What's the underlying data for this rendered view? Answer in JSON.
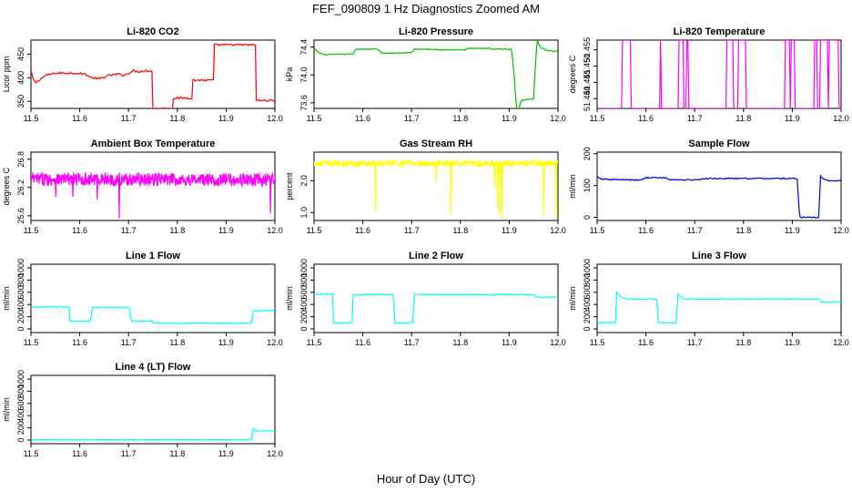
{
  "figure": {
    "title": "FEF_090809  1 Hz Diagnostics Zoomed AM",
    "xlabel": "Hour of Day (UTC)"
  },
  "chart_data": [
    {
      "type": "line",
      "title": "Li-820 CO2",
      "ylabel": "Licor ppm",
      "color": "#ff0000",
      "xlim": [
        11.5,
        12.0
      ],
      "ylim": [
        335,
        480
      ],
      "xticks": [
        "11.5",
        "11.6",
        "11.7",
        "11.8",
        "11.9",
        "12.0"
      ],
      "yticks": [
        {
          "v": 350,
          "label": "350"
        },
        {
          "v": 400,
          "label": "400"
        },
        {
          "v": 450,
          "label": "450"
        }
      ],
      "noise": 2,
      "step": 0.002,
      "x": [
        11.5,
        11.505,
        11.51,
        11.53,
        11.55,
        11.59,
        11.61,
        11.625,
        11.64,
        11.66,
        11.68,
        11.69,
        11.71,
        11.72,
        11.735,
        11.749,
        11.75,
        11.79,
        11.791,
        11.83,
        11.831,
        11.874,
        11.875,
        11.96,
        11.961,
        11.97,
        12.0
      ],
      "y": [
        415,
        395,
        390,
        405,
        410,
        410,
        408,
        400,
        398,
        405,
        408,
        405,
        415,
        413,
        415,
        414,
        335,
        335,
        357,
        357,
        395,
        395,
        470,
        470,
        352,
        352,
        352
      ]
    },
    {
      "type": "line",
      "title": "Li-820 Pressure",
      "ylabel": "kPa",
      "color": "#00c000",
      "xlim": [
        11.5,
        12.0
      ],
      "ylim": [
        73.52,
        74.5
      ],
      "xticks": [
        "11.5",
        "11.6",
        "11.7",
        "11.8",
        "11.9",
        "12.0"
      ],
      "yticks": [
        {
          "v": 73.6,
          "label": "73.6"
        },
        {
          "v": 74.0,
          "label": "74.0"
        },
        {
          "v": 74.4,
          "label": "74.4"
        }
      ],
      "noise": 0.006,
      "step": 0.002,
      "x": [
        11.5,
        11.51,
        11.52,
        11.58,
        11.585,
        11.63,
        11.64,
        11.7,
        11.705,
        11.75,
        11.755,
        11.81,
        11.815,
        11.86,
        11.865,
        11.905,
        11.91,
        11.915,
        11.92,
        11.925,
        11.95,
        11.955,
        11.958,
        11.963,
        11.975,
        11.99,
        12.0
      ],
      "y": [
        74.38,
        74.32,
        74.29,
        74.3,
        74.37,
        74.37,
        74.31,
        74.32,
        74.37,
        74.37,
        74.36,
        74.36,
        74.38,
        74.38,
        74.37,
        74.37,
        74.0,
        73.52,
        73.52,
        73.64,
        73.66,
        74.3,
        74.5,
        74.4,
        74.36,
        74.34,
        74.34
      ]
    },
    {
      "type": "line",
      "title": "Li-820 Temperature",
      "ylabel": "degrees C",
      "color": "#ff00ff",
      "xlim": [
        11.5,
        12.0
      ],
      "ylim": [
        51.437,
        51.458
      ],
      "xticks": [
        "11.5",
        "11.6",
        "11.7",
        "11.8",
        "11.9",
        "12.0"
      ],
      "yticks": [
        {
          "v": 51.44,
          "label": "51.440"
        },
        {
          "v": 51.445,
          "label": "51.445"
        },
        {
          "v": 51.45,
          "label": "51.450"
        },
        {
          "v": 51.455,
          "label": "51.455"
        }
      ],
      "noise": 0,
      "step": 0.002,
      "toggle": true,
      "low": 51.437,
      "high": 51.458
    },
    {
      "type": "line",
      "title": "Ambient Box Temperature",
      "ylabel": "degrees C",
      "color": "#ff00ff",
      "xlim": [
        11.5,
        12.0
      ],
      "ylim": [
        25.5,
        26.95
      ],
      "xticks": [
        "11.5",
        "11.6",
        "11.7",
        "11.8",
        "11.9",
        "12.0"
      ],
      "yticks": [
        {
          "v": 25.6,
          "label": "25.6"
        },
        {
          "v": 26.2,
          "label": "26.2"
        },
        {
          "v": 26.8,
          "label": "26.8"
        }
      ],
      "noise": 0.14,
      "step": 0.0008,
      "x": [
        11.5,
        12.0
      ],
      "y": [
        26.38,
        26.36
      ],
      "spikes": [
        {
          "x": 11.68,
          "y": 25.55
        },
        {
          "x": 11.635,
          "y": 25.95
        },
        {
          "x": 11.585,
          "y": 26.0
        },
        {
          "x": 11.99,
          "y": 25.65
        },
        {
          "x": 11.55,
          "y": 26.0
        }
      ]
    },
    {
      "type": "line",
      "title": "Gas Stream RH",
      "ylabel": "percent",
      "color": "#ffff00",
      "xlim": [
        11.5,
        12.0
      ],
      "ylim": [
        0.75,
        2.9
      ],
      "xticks": [
        "11.5",
        "11.6",
        "11.7",
        "11.8",
        "11.9",
        "12.0"
      ],
      "yticks": [
        {
          "v": 1.0,
          "label": "1.0"
        },
        {
          "v": 2.0,
          "label": "2.0"
        }
      ],
      "noise": 0.1,
      "step": 0.001,
      "x": [
        11.5,
        12.0
      ],
      "y": [
        2.55,
        2.55
      ],
      "spikes": [
        {
          "x": 11.625,
          "y": 1.05
        },
        {
          "x": 11.78,
          "y": 0.95
        },
        {
          "x": 11.875,
          "y": 1.1
        },
        {
          "x": 11.88,
          "y": 0.95
        },
        {
          "x": 11.885,
          "y": 0.8
        },
        {
          "x": 11.97,
          "y": 0.9
        },
        {
          "x": 11.995,
          "y": 0.85
        },
        {
          "x": 11.75,
          "y": 2.0
        },
        {
          "x": 11.87,
          "y": 1.8
        }
      ]
    },
    {
      "type": "line",
      "title": "Sample Flow",
      "ylabel": "ml/min",
      "color": "#0000cc",
      "xlim": [
        11.5,
        12.0
      ],
      "ylim": [
        -10,
        205
      ],
      "xticks": [
        "11.5",
        "11.6",
        "11.7",
        "11.8",
        "11.9",
        "12.0"
      ],
      "yticks": [
        {
          "v": 0,
          "label": "0"
        },
        {
          "v": 100,
          "label": "100"
        },
        {
          "v": 200,
          "label": "200"
        }
      ],
      "noise": 2,
      "step": 0.002,
      "x": [
        11.5,
        11.51,
        11.55,
        11.59,
        11.6,
        11.64,
        11.65,
        11.71,
        11.72,
        11.91,
        11.915,
        11.955,
        11.957,
        11.965,
        11.975,
        12.0
      ],
      "y": [
        126,
        120,
        118,
        117,
        125,
        124,
        118,
        118,
        122,
        122,
        0,
        0,
        130,
        120,
        115,
        115
      ]
    },
    {
      "type": "line",
      "title": "Line 1 Flow",
      "ylabel": "ml/min",
      "color": "#00ffff",
      "xlim": [
        11.5,
        12.0
      ],
      "ylim": [
        -60,
        1060
      ],
      "xticks": [
        "11.5",
        "11.6",
        "11.7",
        "11.8",
        "11.9",
        "12.0"
      ],
      "yticks": [
        {
          "v": 0,
          "label": "0"
        },
        {
          "v": 200,
          "label": "200"
        },
        {
          "v": 400,
          "label": "400"
        },
        {
          "v": 600,
          "label": "600"
        },
        {
          "v": 800,
          "label": "800"
        },
        {
          "v": 1000,
          "label": "1000"
        }
      ],
      "noise": 8,
      "step": 0.002,
      "x": [
        11.5,
        11.578,
        11.58,
        11.623,
        11.625,
        11.703,
        11.705,
        11.748,
        11.75,
        11.953,
        11.955,
        12.0
      ],
      "y": [
        360,
        360,
        130,
        130,
        350,
        350,
        130,
        130,
        95,
        95,
        300,
        300
      ]
    },
    {
      "type": "line",
      "title": "Line 2 Flow",
      "ylabel": "ml/min",
      "color": "#00ffff",
      "xlim": [
        11.5,
        12.0
      ],
      "ylim": [
        -60,
        1060
      ],
      "xticks": [
        "11.5",
        "11.6",
        "11.7",
        "11.8",
        "11.9",
        "12.0"
      ],
      "yticks": [
        {
          "v": 0,
          "label": "0"
        },
        {
          "v": 200,
          "label": "200"
        },
        {
          "v": 400,
          "label": "400"
        },
        {
          "v": 600,
          "label": "600"
        },
        {
          "v": 800,
          "label": "800"
        },
        {
          "v": 1000,
          "label": "1000"
        }
      ],
      "noise": 8,
      "step": 0.002,
      "x": [
        11.5,
        11.538,
        11.54,
        11.578,
        11.58,
        11.663,
        11.665,
        11.703,
        11.705,
        11.95,
        11.955,
        12.0
      ],
      "y": [
        570,
        570,
        100,
        100,
        560,
        560,
        100,
        100,
        560,
        560,
        520,
        520
      ]
    },
    {
      "type": "line",
      "title": "Line 3 Flow",
      "ylabel": "ml/min",
      "color": "#00ffff",
      "xlim": [
        11.5,
        12.0
      ],
      "ylim": [
        -60,
        1060
      ],
      "xticks": [
        "11.5",
        "11.6",
        "11.7",
        "11.8",
        "11.9",
        "12.0"
      ],
      "yticks": [
        {
          "v": 0,
          "label": "0"
        },
        {
          "v": 200,
          "label": "200"
        },
        {
          "v": 400,
          "label": "400"
        },
        {
          "v": 600,
          "label": "600"
        },
        {
          "v": 800,
          "label": "800"
        },
        {
          "v": 1000,
          "label": "1000"
        }
      ],
      "noise": 8,
      "step": 0.002,
      "x": [
        11.5,
        11.538,
        11.54,
        11.55,
        11.56,
        11.623,
        11.625,
        11.663,
        11.665,
        11.675,
        11.68,
        11.955,
        11.96,
        12.0
      ],
      "y": [
        100,
        100,
        600,
        510,
        490,
        490,
        100,
        100,
        580,
        500,
        490,
        490,
        440,
        440
      ]
    },
    {
      "type": "line",
      "title": "Line 4 (LT) Flow",
      "ylabel": "ml/min",
      "color": "#00ffff",
      "xlim": [
        11.5,
        12.0
      ],
      "ylim": [
        -60,
        1060
      ],
      "xticks": [
        "11.5",
        "11.6",
        "11.7",
        "11.8",
        "11.9",
        "12.0"
      ],
      "yticks": [
        {
          "v": 0,
          "label": "0"
        },
        {
          "v": 200,
          "label": "200"
        },
        {
          "v": 400,
          "label": "400"
        },
        {
          "v": 600,
          "label": "600"
        },
        {
          "v": 800,
          "label": "800"
        },
        {
          "v": 1000,
          "label": "1000"
        }
      ],
      "noise": 2,
      "step": 0.002,
      "x": [
        11.5,
        11.953,
        11.955,
        11.96,
        12.0
      ],
      "y": [
        5,
        5,
        200,
        150,
        150
      ]
    }
  ]
}
